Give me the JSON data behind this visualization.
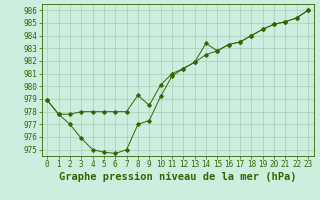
{
  "title": "Graphe pression niveau de la mer (hPa)",
  "line1_x": [
    0,
    1,
    2,
    3,
    4,
    5,
    6,
    7,
    8,
    9,
    10,
    11,
    12,
    13,
    14,
    15,
    16,
    17,
    18,
    19,
    20,
    21,
    22,
    23
  ],
  "line1_y": [
    978.9,
    977.8,
    977.8,
    978.0,
    978.0,
    978.0,
    978.0,
    978.0,
    979.3,
    978.5,
    980.1,
    981.0,
    981.4,
    981.9,
    982.5,
    982.8,
    983.3,
    983.5,
    984.0,
    984.5,
    984.9,
    985.1,
    985.4,
    986.0
  ],
  "line2_x": [
    0,
    1,
    2,
    3,
    4,
    5,
    6,
    7,
    8,
    9,
    10,
    11,
    12,
    13,
    14,
    15,
    16,
    17,
    18,
    19,
    20,
    21,
    22,
    23
  ],
  "line2_y": [
    978.9,
    977.8,
    977.0,
    975.9,
    975.0,
    974.8,
    974.7,
    975.0,
    977.0,
    977.3,
    979.2,
    980.8,
    981.4,
    981.9,
    983.4,
    982.8,
    983.3,
    983.5,
    984.0,
    984.5,
    984.9,
    985.1,
    985.4,
    986.0
  ],
  "line_color": "#336600",
  "marker": "D",
  "marker_size": 1.8,
  "bg_color": "#cceedf",
  "grid_color": "#aaccbb",
  "ylim": [
    974.5,
    986.5
  ],
  "yticks": [
    975,
    976,
    977,
    978,
    979,
    980,
    981,
    982,
    983,
    984,
    985,
    986
  ],
  "xlim": [
    -0.5,
    23.5
  ],
  "title_fontsize": 7.5,
  "tick_fontsize": 5.5
}
